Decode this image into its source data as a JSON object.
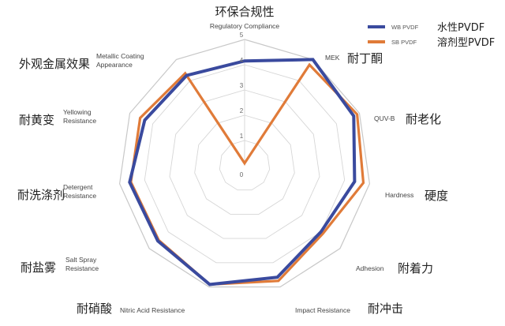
{
  "chart_data": {
    "type": "radar",
    "categories": [
      {
        "en": [
          "Regulatory Compliance"
        ],
        "zh": "环保合规性"
      },
      {
        "en": [
          "MEK"
        ],
        "zh": "耐丁酮"
      },
      {
        "en": [
          "QUV-B"
        ],
        "zh": "耐老化"
      },
      {
        "en": [
          "Hardness"
        ],
        "zh": "硬度"
      },
      {
        "en": [
          "Adhesion"
        ],
        "zh": "附着力"
      },
      {
        "en": [
          "Impact Resistance"
        ],
        "zh": "耐冲击"
      },
      {
        "en": [
          "Nitric Acid Resistance"
        ],
        "zh": "耐硝酸"
      },
      {
        "en": [
          "Salt Spray",
          "Resistance"
        ],
        "zh": "耐盐雾"
      },
      {
        "en": [
          "Detergent",
          "Resistance"
        ],
        "zh": "耐洗涤剂"
      },
      {
        "en": [
          "Yellowing",
          "Resistance"
        ],
        "zh": "耐黄变"
      },
      {
        "en": [
          "Metallic Coating",
          "Appearance"
        ],
        "zh": "外观金属效果"
      }
    ],
    "ticks": [
      "0",
      "1",
      "2",
      "3",
      "4",
      "5"
    ],
    "rlim": [
      0,
      5
    ],
    "grid": true,
    "legend": "top-right",
    "series": [
      {
        "name": "WB PVDF",
        "name_zh": "水性PVDF",
        "color": "#3a4a9e",
        "values": [
          4.15,
          5.0,
          4.75,
          4.4,
          4.0,
          4.6,
          4.9,
          4.55,
          4.6,
          4.35,
          4.25
        ]
      },
      {
        "name": "SB PVDF",
        "name_zh": "溶剂型PVDF",
        "color": "#e07b39",
        "values": [
          0.1,
          4.75,
          4.9,
          4.75,
          4.1,
          4.75,
          4.9,
          4.5,
          4.55,
          4.55,
          4.35
        ]
      }
    ]
  }
}
